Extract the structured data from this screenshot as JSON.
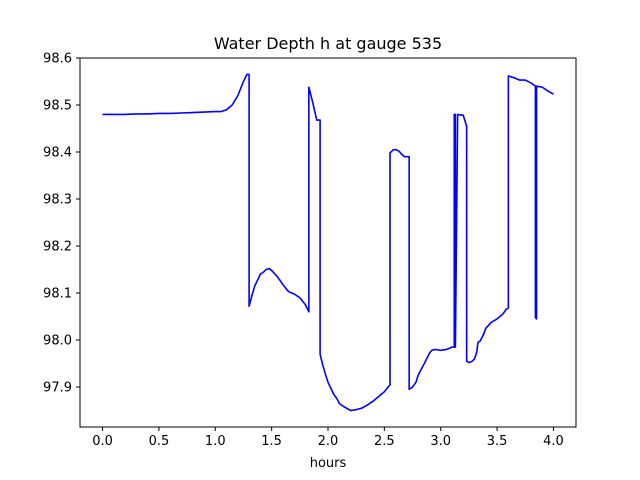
{
  "chart_data": {
    "type": "line",
    "title": "Water Depth h at gauge 535",
    "xlabel": "hours",
    "ylabel": "",
    "xlim": [
      -0.2,
      4.2
    ],
    "ylim": [
      97.815,
      98.6
    ],
    "grid": false,
    "legend": "none",
    "xticks": [
      0.0,
      0.5,
      1.0,
      1.5,
      2.0,
      2.5,
      3.0,
      3.5,
      4.0
    ],
    "xtick_labels": [
      "0.0",
      "0.5",
      "1.0",
      "1.5",
      "2.0",
      "2.5",
      "3.0",
      "3.5",
      "4.0"
    ],
    "yticks": [
      97.9,
      98.0,
      98.1,
      98.2,
      98.3,
      98.4,
      98.5,
      98.6
    ],
    "ytick_labels": [
      "97.9",
      "98.0",
      "98.1",
      "98.2",
      "98.3",
      "98.4",
      "98.5",
      "98.6"
    ],
    "colors": {
      "line": "#0000ff",
      "axes": "#000000"
    },
    "series": [
      {
        "x": [
          0.0,
          0.1,
          0.2,
          0.3,
          0.4,
          0.5,
          0.6,
          0.7,
          0.8,
          0.9,
          1.0,
          1.05,
          1.1,
          1.15,
          1.2,
          1.25,
          1.28,
          1.3,
          1.3,
          1.32,
          1.35,
          1.38,
          1.4,
          1.43,
          1.45,
          1.48,
          1.5,
          1.55,
          1.6,
          1.65,
          1.7,
          1.75,
          1.8,
          1.83,
          1.83,
          1.86,
          1.9,
          1.93,
          1.93,
          1.95,
          1.98,
          2.0,
          2.03,
          2.05,
          2.08,
          2.1,
          2.13,
          2.15,
          2.18,
          2.2,
          2.25,
          2.3,
          2.35,
          2.4,
          2.45,
          2.5,
          2.55,
          2.55,
          2.58,
          2.6,
          2.63,
          2.65,
          2.68,
          2.72,
          2.72,
          2.75,
          2.78,
          2.8,
          2.82,
          2.85,
          2.88,
          2.9,
          2.92,
          2.95,
          3.0,
          3.05,
          3.1,
          3.12,
          3.12,
          3.13,
          3.13,
          3.15,
          3.2,
          3.23,
          3.23,
          3.25,
          3.28,
          3.3,
          3.32,
          3.33,
          3.35,
          3.38,
          3.4,
          3.45,
          3.5,
          3.55,
          3.58,
          3.6,
          3.6,
          3.65,
          3.7,
          3.75,
          3.8,
          3.84,
          3.84,
          3.85,
          3.85,
          3.9,
          3.95,
          4.0
        ],
        "y": [
          98.48,
          98.48,
          98.48,
          98.481,
          98.481,
          98.482,
          98.482,
          98.483,
          98.484,
          98.485,
          98.486,
          98.486,
          98.49,
          98.5,
          98.52,
          98.55,
          98.565,
          98.565,
          98.072,
          98.09,
          98.115,
          98.13,
          98.14,
          98.145,
          98.15,
          98.152,
          98.148,
          98.135,
          98.118,
          98.103,
          98.098,
          98.09,
          98.075,
          98.06,
          98.538,
          98.51,
          98.468,
          98.468,
          97.97,
          97.95,
          97.925,
          97.91,
          97.895,
          97.885,
          97.875,
          97.865,
          97.86,
          97.857,
          97.853,
          97.85,
          97.852,
          97.855,
          97.862,
          97.87,
          97.88,
          97.89,
          97.905,
          98.398,
          98.405,
          98.405,
          98.402,
          98.396,
          98.39,
          98.39,
          97.895,
          97.9,
          97.91,
          97.925,
          97.935,
          97.948,
          97.962,
          97.972,
          97.978,
          97.98,
          97.978,
          97.98,
          97.985,
          97.985,
          98.48,
          98.48,
          97.985,
          98.48,
          98.478,
          98.455,
          97.955,
          97.952,
          97.955,
          97.96,
          97.975,
          97.995,
          97.998,
          98.012,
          98.025,
          98.038,
          98.045,
          98.055,
          98.065,
          98.068,
          98.562,
          98.558,
          98.553,
          98.553,
          98.547,
          98.54,
          98.048,
          98.045,
          98.54,
          98.538,
          98.53,
          98.523
        ]
      }
    ]
  }
}
